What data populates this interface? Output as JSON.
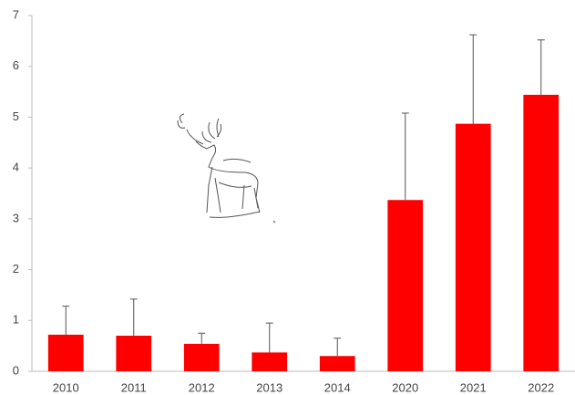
{
  "chart_data": {
    "type": "bar",
    "categories": [
      "2010",
      "2011",
      "2012",
      "2013",
      "2014",
      "2020",
      "2021",
      "2022"
    ],
    "values": [
      0.72,
      0.7,
      0.54,
      0.37,
      0.3,
      3.37,
      4.87,
      5.44
    ],
    "errors": [
      0.56,
      0.72,
      0.21,
      0.58,
      0.35,
      1.71,
      1.75,
      1.08
    ],
    "color": "#ff0000",
    "ylim": [
      0,
      7
    ],
    "yticks": [
      0,
      1,
      2,
      3,
      4,
      5,
      6,
      7
    ],
    "grid": false
  }
}
